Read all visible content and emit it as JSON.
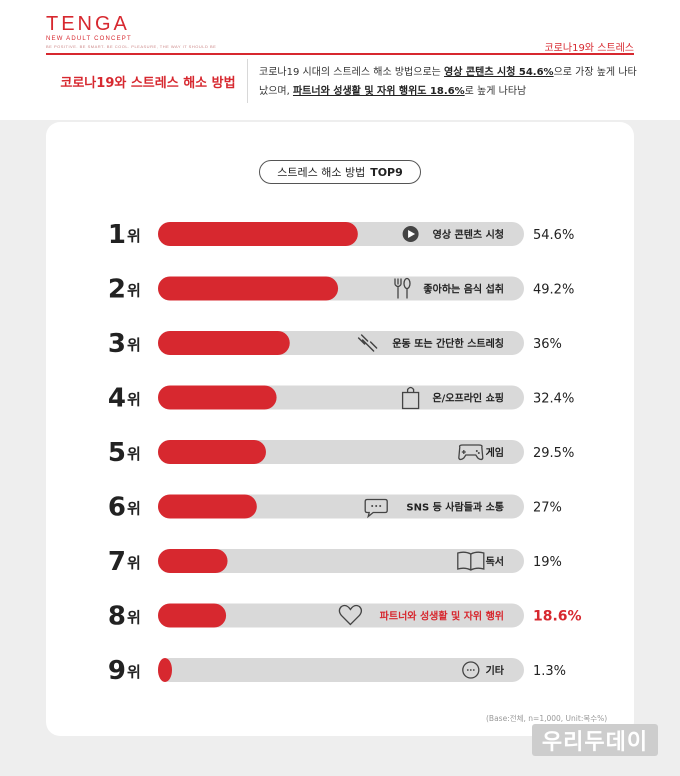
{
  "header": {
    "logo_word": "TENGA",
    "logo_sub": "NEW ADULT CONCEPT",
    "logo_tagline": "BE POSITIVE. BE SMART. BE COOL. PLEASURE, THE WAY IT SHOULD BE",
    "top_tag": "코로나19와 스트레스",
    "title": "코로나19와 스트레스 해소 방법",
    "desc_part1": "코로나19 시대의 스트레스 해소 방법으로는 ",
    "desc_bold1": "영상 콘텐츠 시청 54.6%",
    "desc_part2": "으로 가장 높게 나타났으며, ",
    "desc_bold2": "파트너와 성생활 및 자위 행위도 18.6%",
    "desc_part3": "로 높게 나타남"
  },
  "colors": {
    "accent": "#d7282f",
    "track": "#d9d9d9",
    "text": "#222222"
  },
  "chart_data": {
    "type": "bar",
    "title_prefix": "스트레스 해소 방법",
    "title_bold": "TOP9",
    "rank_suffix": "위",
    "xlim": [
      0,
      100
    ],
    "categories": [
      "영상 콘텐츠 시청",
      "좋아하는 음식 섭취",
      "운동 또는 간단한 스트레칭",
      "온/오프라인 쇼핑",
      "게임",
      "SNS 등 사람들과 소통",
      "독서",
      "파트너와 성생활 및 자위 행위",
      "기타"
    ],
    "values": [
      54.6,
      49.2,
      36,
      32.4,
      29.5,
      27,
      19,
      18.6,
      1.3
    ],
    "value_labels": [
      "54.6%",
      "49.2%",
      "36%",
      "32.4%",
      "29.5%",
      "27%",
      "19%",
      "18.6%",
      "1.3%"
    ],
    "ranks": [
      "1",
      "2",
      "3",
      "4",
      "5",
      "6",
      "7",
      "8",
      "9"
    ],
    "icons": [
      "play-icon",
      "fork-spoon-icon",
      "dumbbell-icon",
      "shopping-bag-icon",
      "gamepad-icon",
      "chat-bubble-icon",
      "book-icon",
      "heart-icon",
      "more-icon"
    ],
    "highlight_index": 7
  },
  "footnote": "(Base:전체, n=1,000, Unit:복수%)",
  "watermark": "우리두데이"
}
